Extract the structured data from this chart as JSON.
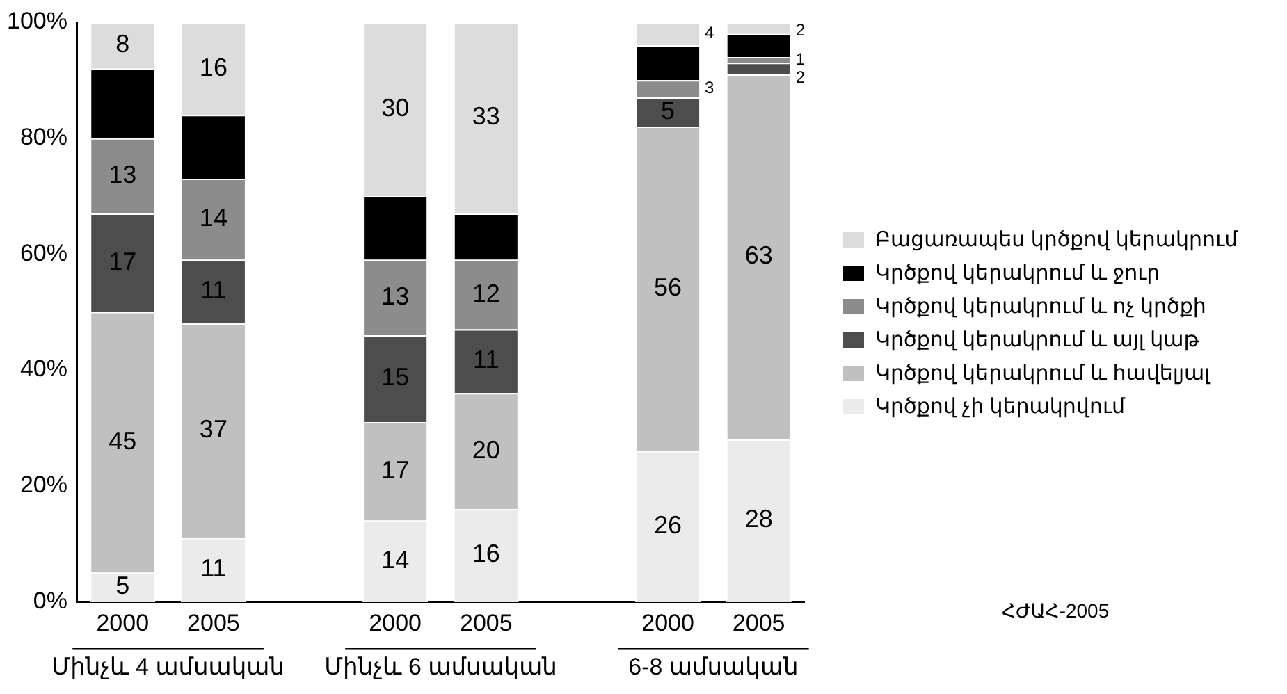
{
  "chart_data": {
    "type": "bar",
    "stacked": true,
    "categories": [
      "2000",
      "2005",
      null,
      "2000",
      "2005",
      null,
      "2000",
      "2005"
    ],
    "series": [
      {
        "name": "Կրծքով չի կերակրվում",
        "color": "#ebebeb",
        "values": [
          5,
          11,
          null,
          14,
          16,
          null,
          26,
          28
        ],
        "value_labels": [
          "5",
          "11",
          null,
          "14",
          "16",
          null,
          "26",
          "28"
        ]
      },
      {
        "name": "Կրծքով կերակրում և հավելյալ",
        "color": "#c0c0c0",
        "values": [
          45,
          37,
          null,
          17,
          20,
          null,
          56,
          63
        ],
        "value_labels": [
          "45",
          "37",
          null,
          "17",
          "20",
          null,
          "56",
          "63"
        ]
      },
      {
        "name": "Կրծքով կերակրում և այլ կաթ",
        "color": "#4d4d4d",
        "values": [
          17,
          11,
          null,
          15,
          11,
          null,
          5,
          2
        ],
        "value_labels": [
          "17",
          "11",
          null,
          "15",
          "11",
          null,
          "5",
          "2"
        ]
      },
      {
        "name": "Կրծքով կերակրում և ոչ կրծքի",
        "color": "#8c8c8c",
        "values": [
          13,
          14,
          null,
          13,
          12,
          null,
          3,
          1
        ],
        "value_labels": [
          "13",
          "14",
          null,
          "13",
          "12",
          null,
          "3",
          "1"
        ]
      },
      {
        "name": "Կրծքով կերակրում և ջուր",
        "color": "#000000",
        "values": [
          12,
          11,
          null,
          11,
          8,
          null,
          6,
          4
        ]
      },
      {
        "name": "Բացառապես կրծքով կերակրում",
        "color": "#dcdcdc",
        "values": [
          8,
          16,
          null,
          30,
          33,
          null,
          4,
          2
        ],
        "value_labels": [
          "8",
          "16",
          null,
          "30",
          "33",
          null,
          "4",
          "2"
        ]
      }
    ],
    "ylim": [
      0,
      100
    ],
    "yticks": [
      {
        "value": 0,
        "label": "0%"
      },
      {
        "value": 20,
        "label": "20%"
      },
      {
        "value": 40,
        "label": "40%"
      },
      {
        "value": 60,
        "label": "60%"
      },
      {
        "value": 80,
        "label": "80%"
      },
      {
        "value": 100,
        "label": "100%"
      }
    ],
    "grid": false,
    "legend": "right",
    "annotations": [
      "Մինչև 4 ամսական",
      "Մինչև 6 ամսական",
      "6-8 ամսական",
      "ՀԺԱՀ-2005"
    ]
  }
}
